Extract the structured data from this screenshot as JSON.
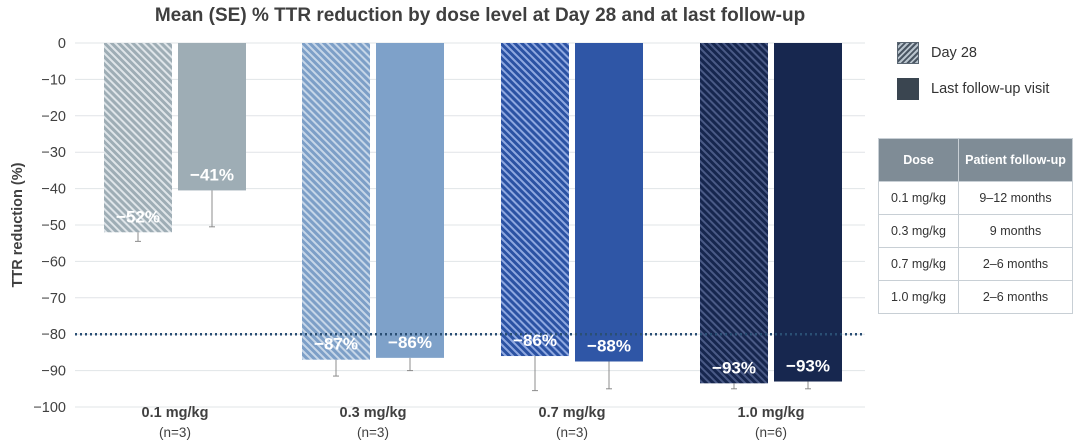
{
  "chart_data": {
    "type": "bar",
    "title": "Mean (SE) % TTR reduction by dose level at Day 28 and at last follow-up",
    "ylabel": "TTR reduction (%)",
    "xlabel": "",
    "ylim": [
      -100,
      0
    ],
    "yticks": [
      0,
      -10,
      -20,
      -30,
      -40,
      -50,
      -60,
      -70,
      -80,
      -90,
      -100
    ],
    "ytick_labels": [
      "0",
      "−10",
      "−20",
      "−30",
      "−40",
      "−50",
      "−60",
      "−70",
      "−80",
      "−90",
      "−100"
    ],
    "grid": true,
    "reference_line": -80,
    "categories": [
      {
        "label": "0.1 mg/kg",
        "n": "(n=3)"
      },
      {
        "label": "0.3 mg/kg",
        "n": "(n=3)"
      },
      {
        "label": "0.7 mg/kg",
        "n": "(n=3)"
      },
      {
        "label": "1.0 mg/kg",
        "n": "(n=6)"
      }
    ],
    "series": [
      {
        "name": "Day 28",
        "pattern": "hatched",
        "values": [
          -52,
          -87,
          -86,
          -93.5
        ],
        "data_labels": [
          "−52%",
          "−87%",
          "−86%",
          "−93%"
        ],
        "error": [
          2.5,
          4.5,
          9.5,
          1.5
        ]
      },
      {
        "name": "Last follow-up visit",
        "pattern": "solid",
        "values": [
          -40.5,
          -86.5,
          -87.5,
          -93
        ],
        "data_labels": [
          "−41%",
          "−86%",
          "−88%",
          "−93%"
        ],
        "error": [
          10,
          3.5,
          7.5,
          2
        ]
      }
    ],
    "colors": {
      "light": [
        "#9eadb5",
        "#7ea1c9",
        "#2f56a6",
        "#17274f"
      ],
      "solid": [
        "#9eadb5",
        "#7ea1c9",
        "#2f56a6",
        "#17274f"
      ],
      "stripe": [
        "#dfe5e9",
        "#c6d6e8",
        "#8fa8e0",
        "#4a5a86"
      ],
      "hatched_base": [
        "#9eadb5",
        "#7d9fc7",
        "#2b52a3",
        "#16264e"
      ],
      "reference_line": "#2a4f74",
      "grid": "#e1e4e7"
    },
    "legend_placement": "right"
  },
  "legend": [
    {
      "label": "Day 28"
    },
    {
      "label": "Last follow-up visit"
    }
  ],
  "table": {
    "headers": [
      "Dose",
      "Patient follow-up"
    ],
    "rows": [
      [
        "0.1 mg/kg",
        "9–12 months"
      ],
      [
        "0.3 mg/kg",
        "9 months"
      ],
      [
        "0.7 mg/kg",
        "2–6 months"
      ],
      [
        "1.0 mg/kg",
        "2–6 months"
      ]
    ]
  }
}
